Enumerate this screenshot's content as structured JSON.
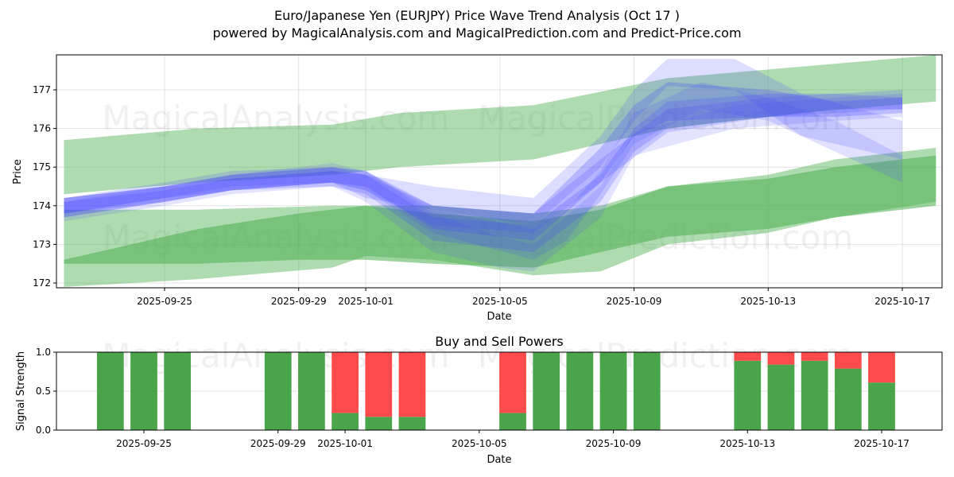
{
  "header": {
    "title": "Euro/Japanese Yen (EURJPY) Price Wave Trend Analysis (Oct 17 )",
    "subtitle": "powered by MagicalAnalysis.com and MagicalPrediction.com and Predict-Price.com"
  },
  "watermarks": [
    "MagicalAnalysis.com",
    "MagicalPrediction.com"
  ],
  "chart_data": [
    {
      "type": "area",
      "title": "",
      "xlabel": "Date",
      "ylabel": "Price",
      "ylim": [
        171.85,
        177.9
      ],
      "xlim": [
        "2025-09-21.8",
        "2025-10-18.3"
      ],
      "grid": true,
      "yticks": [
        172,
        173,
        174,
        175,
        176,
        177
      ],
      "xticks": [
        "2025-09-25",
        "2025-09-29",
        "2025-10-01",
        "2025-10-05",
        "2025-10-09",
        "2025-10-13",
        "2025-10-17"
      ],
      "series": [
        {
          "name": "upper-green-band",
          "color": "#4caf50",
          "opacity": 0.45,
          "x": [
            "2025-09-22",
            "2025-09-26",
            "2025-09-30",
            "2025-10-02",
            "2025-10-04",
            "2025-10-06",
            "2025-10-10",
            "2025-10-14",
            "2025-10-18"
          ],
          "upper": [
            175.7,
            176.0,
            176.1,
            176.4,
            176.5,
            176.6,
            177.3,
            177.6,
            177.9
          ],
          "lower": [
            174.3,
            174.6,
            174.8,
            175.0,
            175.1,
            175.2,
            176.0,
            176.4,
            176.7
          ]
        },
        {
          "name": "lower-green-band-light",
          "color": "#4caf50",
          "opacity": 0.45,
          "x": [
            "2025-09-22",
            "2025-09-26",
            "2025-09-30",
            "2025-10-01",
            "2025-10-03",
            "2025-10-06",
            "2025-10-08",
            "2025-10-10",
            "2025-10-13",
            "2025-10-15",
            "2025-10-18"
          ],
          "upper": [
            173.9,
            173.9,
            174.0,
            174.0,
            174.0,
            173.8,
            174.0,
            174.5,
            174.8,
            175.2,
            175.5
          ],
          "lower": [
            171.9,
            172.1,
            172.4,
            172.7,
            172.6,
            172.2,
            172.3,
            173.0,
            173.3,
            173.7,
            174.1
          ]
        },
        {
          "name": "lower-green-band-dark",
          "color": "#4caf50",
          "opacity": 0.55,
          "x": [
            "2025-09-22",
            "2025-09-26",
            "2025-09-29",
            "2025-10-01",
            "2025-10-03",
            "2025-10-06",
            "2025-10-08",
            "2025-10-10",
            "2025-10-13",
            "2025-10-15",
            "2025-10-18"
          ],
          "upper": [
            172.6,
            173.4,
            173.8,
            174.0,
            173.8,
            173.6,
            173.9,
            174.5,
            174.7,
            175.0,
            175.3
          ],
          "lower": [
            172.5,
            172.5,
            172.6,
            172.6,
            172.5,
            172.4,
            172.8,
            173.2,
            173.4,
            173.7,
            174.0
          ]
        }
      ],
      "wave_paths": [
        {
          "name": "wave-1",
          "color": "#4444ff",
          "opacity": 0.25,
          "x": [
            "2025-09-22",
            "2025-09-25",
            "2025-09-27",
            "2025-09-30",
            "2025-10-01",
            "2025-10-03",
            "2025-10-06",
            "2025-10-08",
            "2025-10-09",
            "2025-10-10",
            "2025-10-13",
            "2025-10-15",
            "2025-10-17"
          ],
          "upper": [
            174.2,
            174.5,
            174.8,
            175.0,
            174.9,
            174.0,
            173.8,
            175.5,
            176.6,
            177.2,
            177.0,
            176.7,
            176.8
          ],
          "lower": [
            173.7,
            174.1,
            174.4,
            174.6,
            174.5,
            173.4,
            173.1,
            174.6,
            175.8,
            176.2,
            176.3,
            176.3,
            176.4
          ]
        },
        {
          "name": "wave-2",
          "color": "#4444ff",
          "opacity": 0.22,
          "x": [
            "2025-09-22",
            "2025-09-25",
            "2025-09-27",
            "2025-09-30",
            "2025-10-01",
            "2025-10-03",
            "2025-10-06",
            "2025-10-08",
            "2025-10-09",
            "2025-10-10",
            "2025-10-13",
            "2025-10-15",
            "2025-10-17"
          ],
          "upper": [
            174.1,
            174.4,
            174.7,
            174.9,
            174.8,
            173.7,
            173.5,
            174.8,
            176.0,
            176.7,
            176.9,
            176.9,
            176.8
          ],
          "lower": [
            173.8,
            174.1,
            174.4,
            174.5,
            174.3,
            173.1,
            172.8,
            174.1,
            175.4,
            176.0,
            176.3,
            176.5,
            176.5
          ]
        },
        {
          "name": "wave-3",
          "color": "#4444ff",
          "opacity": 0.18,
          "x": [
            "2025-09-22",
            "2025-09-25",
            "2025-09-27",
            "2025-09-30",
            "2025-10-01",
            "2025-10-03",
            "2025-10-06",
            "2025-10-08",
            "2025-10-09",
            "2025-10-10",
            "2025-10-12",
            "2025-10-14",
            "2025-10-17"
          ],
          "upper": [
            174.2,
            174.6,
            174.9,
            175.0,
            174.8,
            174.5,
            174.2,
            175.8,
            177.0,
            177.8,
            177.8,
            176.9,
            176.2
          ],
          "lower": [
            173.8,
            174.2,
            174.5,
            174.6,
            174.2,
            173.9,
            173.5,
            175.0,
            176.2,
            177.1,
            177.0,
            175.8,
            175.2
          ]
        },
        {
          "name": "wave-4",
          "color": "#4444ff",
          "opacity": 0.16,
          "x": [
            "2025-09-22",
            "2025-09-25",
            "2025-09-27",
            "2025-09-30",
            "2025-10-01",
            "2025-10-03",
            "2025-10-06",
            "2025-10-07",
            "2025-10-08",
            "2025-10-09",
            "2025-10-11",
            "2025-10-13",
            "2025-10-15",
            "2025-10-17"
          ],
          "upper": [
            174.1,
            174.5,
            174.8,
            175.0,
            174.9,
            173.9,
            173.4,
            173.9,
            174.9,
            176.4,
            177.2,
            176.8,
            176.2,
            175.3
          ],
          "lower": [
            173.7,
            174.1,
            174.4,
            174.6,
            174.4,
            173.3,
            172.6,
            173.1,
            174.3,
            175.6,
            176.5,
            176.2,
            175.4,
            174.6
          ]
        },
        {
          "name": "wave-5",
          "color": "#4444ff",
          "opacity": 0.15,
          "x": [
            "2025-09-22",
            "2025-09-25",
            "2025-09-27",
            "2025-09-30",
            "2025-10-01",
            "2025-10-03",
            "2025-10-05",
            "2025-10-06",
            "2025-10-08",
            "2025-10-09",
            "2025-10-12",
            "2025-10-15",
            "2025-10-17"
          ],
          "upper": [
            174.2,
            174.5,
            174.8,
            175.1,
            174.9,
            173.8,
            173.2,
            173.0,
            174.5,
            175.9,
            176.6,
            176.8,
            176.9
          ],
          "lower": [
            173.6,
            174.0,
            174.3,
            174.5,
            174.1,
            172.8,
            172.4,
            172.3,
            173.7,
            175.3,
            176.0,
            176.2,
            176.3
          ]
        },
        {
          "name": "wave-6",
          "color": "#4444ff",
          "opacity": 0.2,
          "x": [
            "2025-09-22",
            "2025-09-25",
            "2025-09-27",
            "2025-09-30",
            "2025-10-01",
            "2025-10-03",
            "2025-10-06",
            "2025-10-08",
            "2025-10-10",
            "2025-10-13",
            "2025-10-17"
          ],
          "upper": [
            174.2,
            174.5,
            174.7,
            174.9,
            174.8,
            174.0,
            173.8,
            175.2,
            176.5,
            176.8,
            177.0
          ],
          "lower": [
            173.8,
            174.2,
            174.4,
            174.6,
            174.4,
            173.5,
            173.3,
            174.6,
            175.9,
            176.3,
            176.5
          ]
        }
      ]
    },
    {
      "type": "bar",
      "title": "Buy and Sell Powers",
      "xlabel": "Date",
      "ylabel": "Signal Strength",
      "ylim": [
        0,
        1.0
      ],
      "grid": true,
      "yticks": [
        "0.0",
        "0.5",
        "1.0"
      ],
      "xticks": [
        "2025-09-25",
        "2025-09-29",
        "2025-10-01",
        "2025-10-05",
        "2025-10-09",
        "2025-10-13",
        "2025-10-17"
      ],
      "categories": [
        "2025-09-24",
        "2025-09-25",
        "2025-09-26",
        "2025-09-29",
        "2025-09-30",
        "2025-10-01",
        "2025-10-02",
        "2025-10-03",
        "2025-10-06",
        "2025-10-07",
        "2025-10-08",
        "2025-10-09",
        "2025-10-10",
        "2025-10-13",
        "2025-10-14",
        "2025-10-15",
        "2025-10-16",
        "2025-10-17"
      ],
      "series": [
        {
          "name": "Buy",
          "color": "#4aa54a",
          "values": [
            1.0,
            1.0,
            1.0,
            1.0,
            1.0,
            0.22,
            0.17,
            0.17,
            0.22,
            1.0,
            1.0,
            1.0,
            1.0,
            0.89,
            0.84,
            0.89,
            0.79,
            0.61
          ]
        },
        {
          "name": "Sell",
          "color": "#ff4b4b",
          "values": [
            0.0,
            0.0,
            0.0,
            0.0,
            0.0,
            0.78,
            0.83,
            0.83,
            0.78,
            0.0,
            0.0,
            0.0,
            0.0,
            0.11,
            0.16,
            0.11,
            0.21,
            0.39
          ]
        }
      ]
    }
  ]
}
